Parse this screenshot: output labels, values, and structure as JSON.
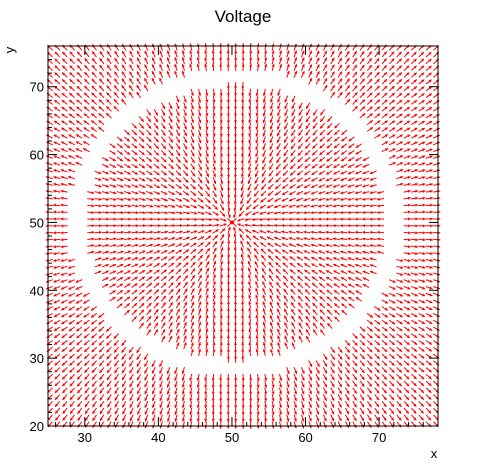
{
  "chart_data": {
    "type": "vector-field",
    "title": "Voltage",
    "xlabel": "x",
    "ylabel": "y",
    "xlim": [
      25,
      78
    ],
    "ylim": [
      20,
      76
    ],
    "xticks": [
      30,
      40,
      50,
      60,
      70
    ],
    "yticks": [
      20,
      30,
      40,
      50,
      60,
      70
    ],
    "grid": false,
    "arrow_color": "#ff0000",
    "field": {
      "center": [
        50,
        50
      ],
      "ring_center": [
        50.5,
        50
      ],
      "ring_radius_x": 21.5,
      "ring_radius_y": 21.5,
      "x_step": 1,
      "y_step": 1,
      "description_direction": "radially inward toward center inside ring, outward beyond ring"
    }
  },
  "colors": {
    "background": "#ffffff",
    "frame": "#000000",
    "arrow": "#ff0000"
  }
}
